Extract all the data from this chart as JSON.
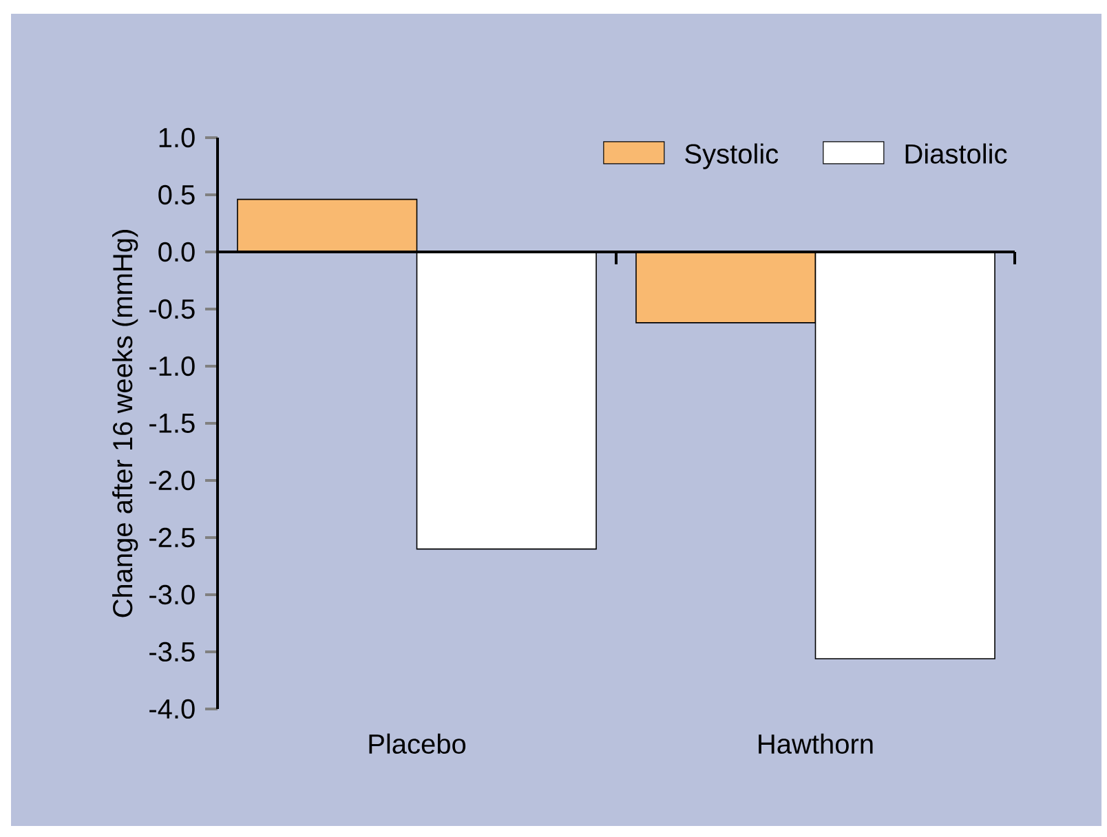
{
  "chart_data": {
    "type": "bar",
    "ylabel": "Change after 16 weeks (mmHg)",
    "categories": [
      "Placebo",
      "Hawthorn"
    ],
    "series": [
      {
        "name": "Systolic",
        "color": "#f9b970",
        "values": [
          0.46,
          -0.62
        ]
      },
      {
        "name": "Diastolic",
        "color": "#ffffff",
        "values": [
          -2.6,
          -3.56
        ]
      }
    ],
    "ylim": [
      -4,
      1
    ],
    "yticks": [
      {
        "value": 1,
        "label": "1.0"
      },
      {
        "value": 0.5,
        "label": "0.5"
      },
      {
        "value": 0,
        "label": "0.0"
      },
      {
        "value": -0.5,
        "label": "-0.5"
      },
      {
        "value": -1,
        "label": "-1.0"
      },
      {
        "value": -1.5,
        "label": "-1.5"
      },
      {
        "value": -2,
        "label": "-2.0"
      },
      {
        "value": -2.5,
        "label": "-2.5"
      },
      {
        "value": -3,
        "label": "-3.0"
      },
      {
        "value": -3.5,
        "label": "-3.5"
      },
      {
        "value": -4,
        "label": "-4.0"
      }
    ],
    "legend": "top right"
  }
}
